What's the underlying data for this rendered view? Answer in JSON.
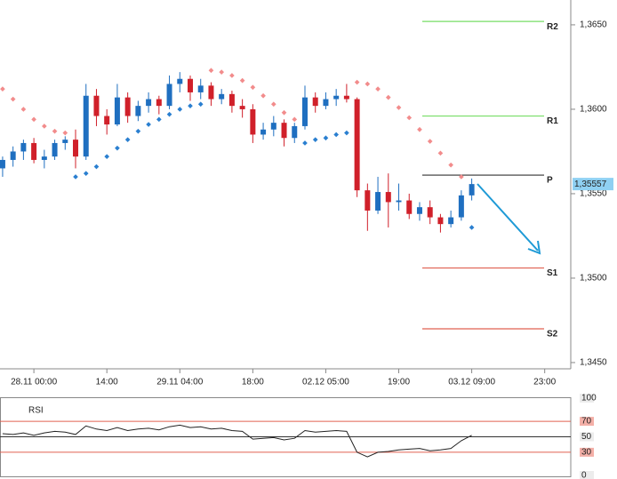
{
  "chart_data": [
    {
      "type": "candlestick",
      "x": [
        0,
        2,
        4,
        6,
        8,
        10,
        12,
        14,
        16,
        18,
        20,
        22,
        24,
        26,
        28,
        30,
        32,
        34,
        36,
        38,
        40,
        42,
        44,
        46,
        48,
        50,
        52,
        54,
        56,
        58,
        60,
        62,
        64,
        66,
        68,
        70,
        72,
        74,
        76,
        78,
        80,
        82,
        84,
        86,
        88,
        90
      ],
      "open": [
        1.3565,
        1.357,
        1.3575,
        1.358,
        1.357,
        1.3572,
        1.358,
        1.3582,
        1.3572,
        1.3608,
        1.3596,
        1.3591,
        1.3607,
        1.3596,
        1.3602,
        1.3606,
        1.3602,
        1.3615,
        1.3618,
        1.361,
        1.3614,
        1.3606,
        1.3609,
        1.3602,
        1.36,
        1.3585,
        1.3588,
        1.3592,
        1.3583,
        1.359,
        1.3607,
        1.3602,
        1.3606,
        1.3608,
        1.3606,
        1.3552,
        1.354,
        1.3551,
        1.3545,
        1.3546,
        1.3538,
        1.3542,
        1.3536,
        1.3532,
        1.3536,
        1.3549
      ],
      "high": [
        1.3572,
        1.3578,
        1.3582,
        1.3583,
        1.3576,
        1.3582,
        1.3584,
        1.3588,
        1.3615,
        1.3612,
        1.36,
        1.3615,
        1.361,
        1.3605,
        1.361,
        1.3608,
        1.362,
        1.3622,
        1.362,
        1.3618,
        1.3616,
        1.3612,
        1.3611,
        1.3606,
        1.3603,
        1.3592,
        1.3596,
        1.3594,
        1.3592,
        1.3614,
        1.361,
        1.361,
        1.3612,
        1.3615,
        1.3607,
        1.3556,
        1.356,
        1.3562,
        1.3556,
        1.355,
        1.3545,
        1.3546,
        1.3538,
        1.354,
        1.3552,
        1.3559
      ],
      "low": [
        1.356,
        1.3566,
        1.357,
        1.3568,
        1.3565,
        1.357,
        1.3576,
        1.3565,
        1.357,
        1.359,
        1.3585,
        1.359,
        1.3592,
        1.3593,
        1.3598,
        1.3597,
        1.36,
        1.361,
        1.3605,
        1.3606,
        1.3602,
        1.3603,
        1.3598,
        1.3595,
        1.358,
        1.3582,
        1.3584,
        1.3578,
        1.358,
        1.3588,
        1.3598,
        1.36,
        1.3602,
        1.3604,
        1.3548,
        1.3528,
        1.3538,
        1.353,
        1.354,
        1.3535,
        1.3534,
        1.3532,
        1.3527,
        1.353,
        1.3534,
        1.3546
      ],
      "close": [
        1.357,
        1.3575,
        1.358,
        1.357,
        1.3572,
        1.358,
        1.3582,
        1.3572,
        1.3608,
        1.3596,
        1.3591,
        1.3607,
        1.3596,
        1.3602,
        1.3606,
        1.3602,
        1.3615,
        1.3618,
        1.361,
        1.3614,
        1.3606,
        1.3609,
        1.3602,
        1.36,
        1.3585,
        1.3588,
        1.3592,
        1.3583,
        1.359,
        1.3607,
        1.3602,
        1.3606,
        1.3608,
        1.3606,
        1.3552,
        1.354,
        1.3551,
        1.3545,
        1.3546,
        1.3538,
        1.3542,
        1.3536,
        1.3532,
        1.3536,
        1.3549,
        1.35557
      ],
      "sar": [
        1.3612,
        1.3606,
        1.36,
        1.3594,
        1.359,
        1.3587,
        1.3586,
        1.356,
        1.3562,
        1.3566,
        1.3572,
        1.3577,
        1.3582,
        1.3587,
        1.3591,
        1.3594,
        1.3597,
        1.36,
        1.3602,
        1.3603,
        1.3623,
        1.3622,
        1.362,
        1.3617,
        1.3613,
        1.3608,
        1.3603,
        1.3598,
        1.3594,
        1.358,
        1.3582,
        1.3583,
        1.3585,
        1.3586,
        1.3616,
        1.3615,
        1.3612,
        1.3607,
        1.3601,
        1.3595,
        1.3588,
        1.3581,
        1.3574,
        1.3567,
        1.356,
        1.353
      ],
      "up_color": "#1f6fc0",
      "down_color": "#d0202a",
      "sar_up_color": "#2a7fd0",
      "sar_down_color": "#f28c8c",
      "xlim": [
        -0.5,
        109
      ],
      "xticks": [
        {
          "value": 6,
          "label": "28.11 00:00"
        },
        {
          "value": 20,
          "label": "14:00"
        },
        {
          "value": 34,
          "label": "29.11 04:00"
        },
        {
          "value": 48,
          "label": "18:00"
        },
        {
          "value": 62,
          "label": "02.12 05:00"
        },
        {
          "value": 76,
          "label": "19:00"
        },
        {
          "value": 90,
          "label": "03.12 09:00"
        },
        {
          "value": 104,
          "label": "23:00"
        }
      ],
      "ylim": [
        1.34463,
        1.36647
      ],
      "yticks": [
        {
          "value": 1.345,
          "label": "1,3450"
        },
        {
          "value": 1.35,
          "label": "1,3500"
        },
        {
          "value": 1.355,
          "label": "1,3550"
        },
        {
          "value": 1.36,
          "label": "1,3600"
        },
        {
          "value": 1.365,
          "label": "1,3650"
        }
      ],
      "last_price": {
        "value": 1.35557,
        "label": "1,35557"
      },
      "levels": [
        {
          "name": "R2",
          "value": 1.3652,
          "color": "#77dd66"
        },
        {
          "name": "R1",
          "value": 1.3596,
          "color": "#77dd66"
        },
        {
          "name": "P",
          "value": 1.3561,
          "color": "#333333"
        },
        {
          "name": "S1",
          "value": 1.3506,
          "color": "#e06050"
        },
        {
          "name": "S2",
          "value": 1.347,
          "color": "#e06050"
        }
      ]
    },
    {
      "type": "line",
      "title": "RSI",
      "x": [
        0,
        2,
        4,
        6,
        8,
        10,
        12,
        14,
        16,
        18,
        20,
        22,
        24,
        26,
        28,
        30,
        32,
        34,
        36,
        38,
        40,
        42,
        44,
        46,
        48,
        50,
        52,
        54,
        56,
        58,
        60,
        62,
        64,
        66,
        68,
        70,
        72,
        74,
        76,
        78,
        80,
        82,
        84,
        86,
        88,
        90
      ],
      "values": [
        54,
        53,
        55,
        52,
        55,
        57,
        56,
        53,
        64,
        60,
        58,
        62,
        58,
        60,
        61,
        59,
        63,
        65,
        62,
        63,
        60,
        61,
        58,
        57,
        47,
        48,
        49,
        46,
        48,
        58,
        56,
        57,
        58,
        57,
        30,
        24,
        30,
        31,
        33,
        34,
        35,
        32,
        33,
        35,
        45,
        52
      ],
      "color": "#222222",
      "ylim": [
        0,
        100
      ],
      "yticks": [
        0,
        30,
        50,
        70,
        100
      ],
      "ref_lines": [
        {
          "value": 30,
          "color": "#e06050"
        },
        {
          "value": 50,
          "color": "#333333"
        },
        {
          "value": 70,
          "color": "#e06050"
        }
      ]
    }
  ]
}
